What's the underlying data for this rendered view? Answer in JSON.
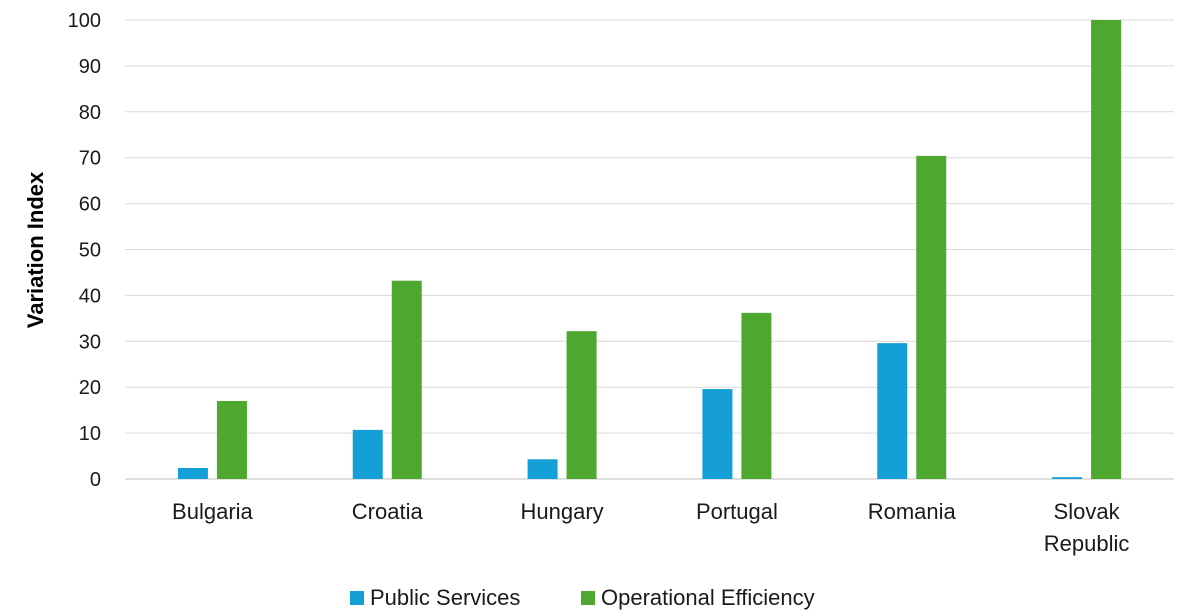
{
  "chart_data": {
    "type": "bar",
    "title": "",
    "xlabel": "",
    "ylabel": "Variation Index",
    "ylim": [
      0,
      100
    ],
    "yticks": [
      "0",
      "10",
      "20",
      "30",
      "40",
      "50",
      "60",
      "70",
      "80",
      "90",
      "100"
    ],
    "grid": true,
    "legend_position": "bottom",
    "categories": [
      [
        "Bulgaria"
      ],
      [
        "Croatia"
      ],
      [
        "Hungary"
      ],
      [
        "Portugal"
      ],
      [
        "Romania"
      ],
      [
        "Slovak",
        "Republic"
      ]
    ],
    "series": [
      {
        "name": "Public Services",
        "color": "#149fd6",
        "values": [
          2.4,
          10.7,
          4.3,
          19.6,
          29.6,
          0.4
        ]
      },
      {
        "name": "Operational Efficiency",
        "color": "#4ea72e",
        "values": [
          17.0,
          43.2,
          32.2,
          36.2,
          70.4,
          100
        ]
      }
    ]
  }
}
